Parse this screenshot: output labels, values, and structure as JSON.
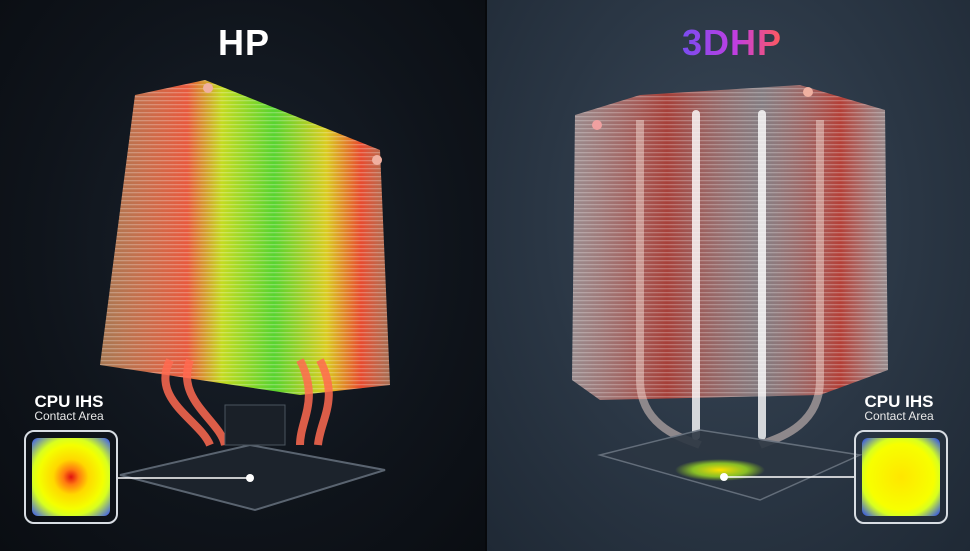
{
  "left_panel": {
    "title": "HP",
    "inset_label": {
      "line1": "CPU IHS",
      "line2": "Contact Area"
    },
    "inset_heatmap": "concentrated red hotspot center"
  },
  "right_panel": {
    "title": "3DHP",
    "inset_label": {
      "line1": "CPU IHS",
      "line2": "Contact Area"
    },
    "inset_heatmap": "uniform yellow"
  },
  "colors": {
    "left_bg": "#10151c",
    "right_bg": "#2a3644",
    "title_gradient": [
      "#7a4cf0",
      "#c23ee0",
      "#ff5a5a"
    ]
  }
}
